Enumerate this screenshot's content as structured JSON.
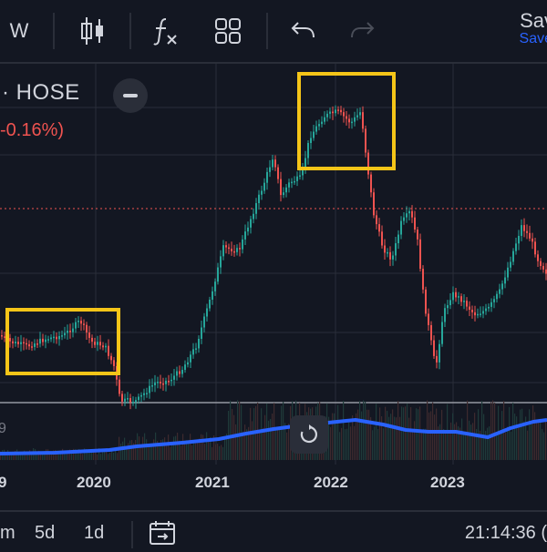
{
  "toolbar": {
    "interval_label": "W",
    "save_label": "Sav",
    "save_sublabel": "Save"
  },
  "symbol": {
    "exchange_text": "· HOSE",
    "change_text": "-0.16%)"
  },
  "chart_data": {
    "type": "candlestick",
    "x_tick_labels": [
      "9",
      "2020",
      "2021",
      "2022",
      "2023"
    ],
    "volume_tick_label": "9",
    "highlight_boxes": 2,
    "colors": {
      "up": "#26a69a",
      "down": "#ef5350",
      "volume_ma": "#2962ff",
      "highlight": "#f5c518",
      "price_line": "#ef5350"
    }
  },
  "bottom": {
    "ranges": [
      "m",
      "5d",
      "1d"
    ],
    "clock": "21:14:36 ("
  },
  "colors": {
    "background": "#131722",
    "accent": "#2962ff",
    "down": "#ef5350"
  }
}
